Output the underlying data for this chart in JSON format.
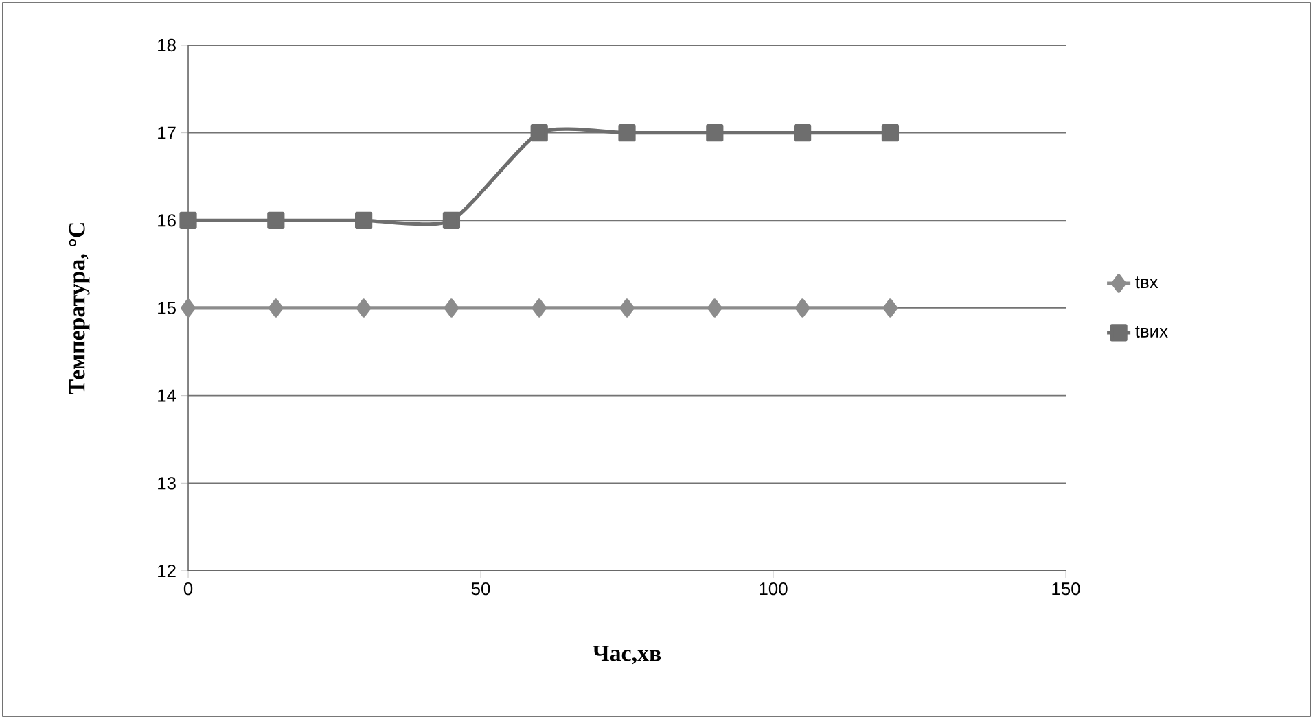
{
  "chart_data": {
    "type": "line",
    "xlabel": "Час,хв",
    "ylabel": "Температура, °С",
    "xlim": [
      0,
      150
    ],
    "xticks": [
      0,
      50,
      100,
      150
    ],
    "ylim": [
      12,
      18
    ],
    "yticks": [
      12,
      13,
      14,
      15,
      16,
      17,
      18
    ],
    "grid": "y",
    "legend": "right",
    "series": [
      {
        "name": "tвх",
        "color": "#8c8c8c",
        "marker": "diamond",
        "x": [
          0,
          15,
          30,
          45,
          60,
          75,
          90,
          105,
          120
        ],
        "values": [
          15,
          15,
          15,
          15,
          15,
          15,
          15,
          15,
          15
        ]
      },
      {
        "name": "tвих",
        "color": "#6e6e6e",
        "marker": "square",
        "x": [
          0,
          15,
          30,
          45,
          60,
          75,
          90,
          105,
          120
        ],
        "values": [
          16,
          16,
          16,
          16,
          17,
          17,
          17,
          17,
          17
        ]
      }
    ]
  }
}
